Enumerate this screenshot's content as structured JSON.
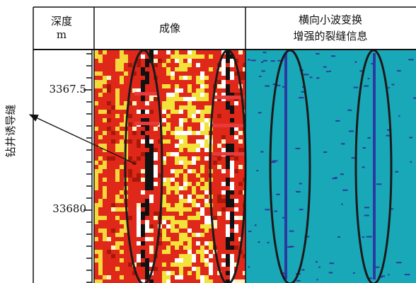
{
  "header": {
    "depth_title": "深度",
    "depth_unit": "m",
    "image_title": "成像",
    "wavelet_title": [
      "横向小波变换",
      "增强的裂缝信息"
    ]
  },
  "depth_labels": [
    "3367.5",
    "33680"
  ],
  "annotation": "钻井诱导缝"
}
